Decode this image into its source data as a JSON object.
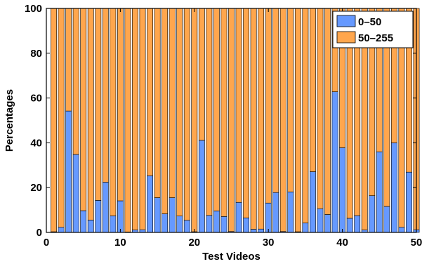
{
  "chart_data": {
    "type": "bar",
    "stacked": true,
    "title": "",
    "xlabel": "Test Videos",
    "ylabel": "Percentages",
    "xlim": [
      0,
      50
    ],
    "ylim": [
      0,
      100
    ],
    "x_ticks": [
      "0",
      "10",
      "20",
      "30",
      "40",
      "50"
    ],
    "y_ticks": [
      "0",
      "20",
      "40",
      "60",
      "80",
      "100"
    ],
    "grid": false,
    "legend_position": "top-right",
    "x": [
      1,
      2,
      3,
      4,
      5,
      6,
      7,
      8,
      9,
      10,
      11,
      12,
      13,
      14,
      15,
      16,
      17,
      18,
      19,
      20,
      21,
      22,
      23,
      24,
      25,
      26,
      27,
      28,
      29,
      30,
      31,
      32,
      33,
      34,
      35,
      36,
      37,
      38,
      39,
      40,
      41,
      42,
      43,
      44,
      45,
      46,
      47,
      48,
      49,
      50
    ],
    "series": [
      {
        "name": "0–50",
        "color": "#6699ff",
        "values": [
          0.3,
          2.3,
          54.2,
          34.8,
          9.7,
          5.5,
          14.3,
          22.4,
          7.4,
          14.1,
          0.2,
          1.1,
          1.2,
          25.3,
          15.5,
          8.3,
          15.5,
          7.3,
          5.4,
          0.3,
          41.1,
          7.6,
          9.6,
          7.1,
          0.4,
          13.4,
          6.5,
          1.4,
          1.5,
          13.1,
          17.8,
          0.4,
          18.1,
          0.3,
          4.2,
          27.1,
          10.6,
          8.0,
          62.8,
          37.8,
          6.3,
          7.5,
          1.1,
          16.4,
          36.0,
          11.6,
          40.0,
          2.3,
          26.9,
          1.2
        ]
      },
      {
        "name": "50–255",
        "color": "#ffa64d",
        "values": [
          99.7,
          97.7,
          45.8,
          65.2,
          90.3,
          94.5,
          85.7,
          77.6,
          92.6,
          85.9,
          99.8,
          98.9,
          98.8,
          74.7,
          84.5,
          91.7,
          84.5,
          92.7,
          94.6,
          99.7,
          58.9,
          92.4,
          90.4,
          92.9,
          99.6,
          86.6,
          93.5,
          98.6,
          98.5,
          86.9,
          82.2,
          99.6,
          81.9,
          99.7,
          95.8,
          72.9,
          89.4,
          92.0,
          37.2,
          62.2,
          93.7,
          92.5,
          98.9,
          83.6,
          64.0,
          88.4,
          60.0,
          97.7,
          73.1,
          98.8
        ]
      }
    ]
  }
}
